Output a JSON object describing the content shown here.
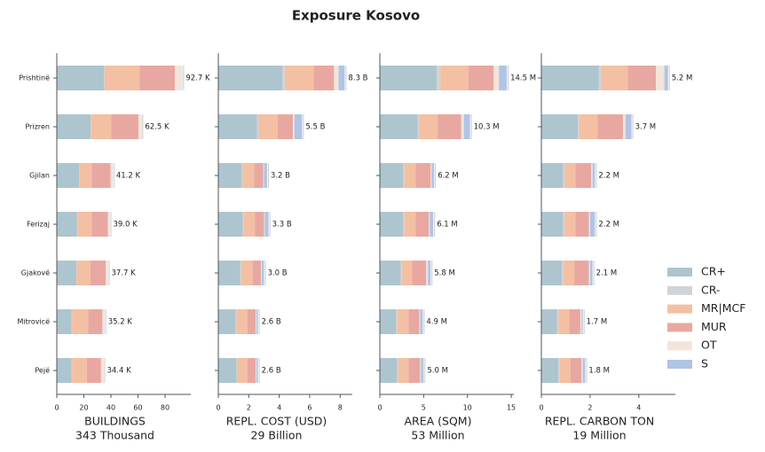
{
  "chart_data": {
    "type": "bar",
    "orientation": "horizontal",
    "stacked": true,
    "title": "Exposure Kosovo",
    "categories": [
      "Prishtinë",
      "Prizren",
      "Gjilan",
      "Ferizaj",
      "Gjakovë",
      "Mitrovicë",
      "Pejë"
    ],
    "series": [
      {
        "name": "CR+",
        "color": "#adc5cf"
      },
      {
        "name": "CR-",
        "color": "#cfd3da"
      },
      {
        "name": "MR|MCF",
        "color": "#f3c0a3"
      },
      {
        "name": "MUR",
        "color": "#e8a8a1"
      },
      {
        "name": "OT",
        "color": "#f4e4d9"
      },
      {
        "name": "S",
        "color": "#b0c4e5"
      }
    ],
    "legend": "right",
    "panels": [
      {
        "xlabel": "BUILDINGS",
        "xlabel_total": "343 Thousand",
        "xlim": [
          0,
          99
        ],
        "xticks": [
          0,
          20,
          40,
          60,
          80
        ],
        "values": [
          [
            35,
            25,
            16.5,
            15,
            14.5,
            11,
            11
          ],
          [
            0.3,
            0.3,
            0.2,
            0.2,
            0.2,
            0.2,
            0.2
          ],
          [
            26,
            15,
            9,
            10.5,
            10,
            12,
            11
          ],
          [
            26,
            20,
            14,
            12,
            11.5,
            10.5,
            10.5
          ],
          [
            5.2,
            2,
            1.3,
            1.1,
            1.3,
            1.3,
            1.5
          ],
          [
            0.2,
            0.2,
            0.2,
            0.2,
            0.2,
            0.2,
            0.2
          ]
        ],
        "totals": {
          "values": [
            92.7,
            62.5,
            41.2,
            39.0,
            37.7,
            35.2,
            34.4
          ],
          "value_labels": [
            "92.7 K",
            "62.5 K",
            "41.2 K",
            "39.0 K",
            "37.7 K",
            "35.2 K",
            "34.4 K"
          ]
        }
      },
      {
        "xlabel": "REPL. COST (USD)",
        "xlabel_total": "29 Billion",
        "xlim": [
          0,
          8.8
        ],
        "xticks": [
          0,
          2,
          4,
          6,
          8
        ],
        "values": [
          [
            4.2,
            2.55,
            1.55,
            1.6,
            1.45,
            1.15,
            1.2
          ],
          [
            0.2,
            0.1,
            0.05,
            0.05,
            0.05,
            0.05,
            0.05
          ],
          [
            1.85,
            1.25,
            0.75,
            0.75,
            0.75,
            0.7,
            0.65
          ],
          [
            1.35,
            1.0,
            0.6,
            0.6,
            0.55,
            0.55,
            0.55
          ],
          [
            0.3,
            0.1,
            0.05,
            0.05,
            0.05,
            0.05,
            0.05
          ],
          [
            0.4,
            0.5,
            0.2,
            0.25,
            0.15,
            0.1,
            0.1
          ]
        ],
        "totals": {
          "values": [
            8.3,
            5.5,
            3.2,
            3.3,
            3.0,
            2.6,
            2.6
          ],
          "value_labels": [
            "8.3 B",
            "5.5 B",
            "3.2 B",
            "3.3 B",
            "3.0 B",
            "2.6 B",
            "2.6 B"
          ]
        }
      },
      {
        "xlabel": "AREA (SQM)",
        "xlabel_total": "53 Million",
        "xlim": [
          0,
          15.3
        ],
        "xticks": [
          0,
          5,
          10,
          15
        ],
        "values": [
          [
            6.5,
            4.3,
            2.7,
            2.7,
            2.4,
            1.9,
            2.0
          ],
          [
            0.4,
            0.2,
            0.1,
            0.1,
            0.1,
            0.1,
            0.1
          ],
          [
            3.2,
            2.1,
            1.3,
            1.3,
            1.2,
            1.3,
            1.2
          ],
          [
            2.9,
            2.7,
            1.7,
            1.5,
            1.6,
            1.2,
            1.3
          ],
          [
            0.6,
            0.3,
            0.1,
            0.1,
            0.2,
            0.1,
            0.1
          ],
          [
            0.9,
            0.7,
            0.3,
            0.4,
            0.3,
            0.3,
            0.3
          ]
        ],
        "totals": {
          "values": [
            14.5,
            10.3,
            6.2,
            6.1,
            5.8,
            4.9,
            5.0
          ],
          "value_labels": [
            "14.5 M",
            "10.3 M",
            "6.2 M",
            "6.1 M",
            "5.8 M",
            "4.9 M",
            "5.0 M"
          ]
        }
      },
      {
        "xlabel": "REPL. CARBON TON",
        "xlabel_total": "19 Million",
        "xlim": [
          0,
          5.5
        ],
        "xticks": [
          0,
          2,
          4
        ],
        "values": [
          [
            2.35,
            1.5,
            0.9,
            0.9,
            0.85,
            0.65,
            0.7
          ],
          [
            0.1,
            0.05,
            0.05,
            0.05,
            0.05,
            0.05,
            0.05
          ],
          [
            1.1,
            0.75,
            0.45,
            0.45,
            0.45,
            0.45,
            0.45
          ],
          [
            1.15,
            1.05,
            0.65,
            0.55,
            0.6,
            0.45,
            0.45
          ],
          [
            0.35,
            0.1,
            0.05,
            0.05,
            0.05,
            0.05,
            0.05
          ],
          [
            0.15,
            0.25,
            0.1,
            0.2,
            0.1,
            0.05,
            0.1
          ]
        ],
        "totals": {
          "values": [
            5.2,
            3.7,
            2.2,
            2.2,
            2.1,
            1.7,
            1.8
          ],
          "value_labels": [
            "5.2 M",
            "3.7 M",
            "2.2 M",
            "2.2 M",
            "2.1 M",
            "1.7 M",
            "1.8 M"
          ]
        }
      }
    ]
  }
}
